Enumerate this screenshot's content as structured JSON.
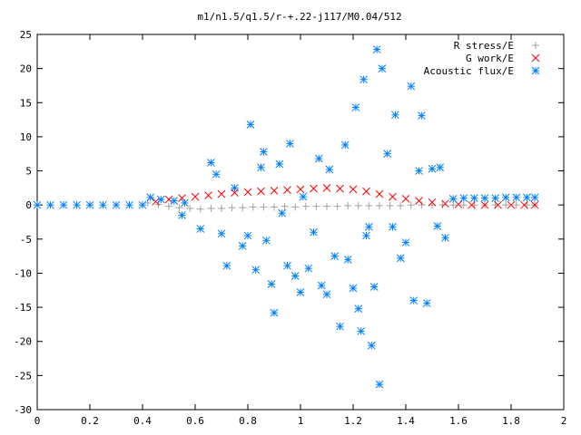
{
  "chart_data": {
    "type": "scatter",
    "title": "m1/n1.5/q1.5/r-+.22-j117/M0.04/512",
    "xlabel": "",
    "ylabel": "",
    "xlim": [
      0,
      2
    ],
    "ylim": [
      -30,
      25
    ],
    "x_ticks": [
      "0",
      "0.2",
      "0.4",
      "0.6",
      "0.8",
      "1",
      "1.2",
      "1.4",
      "1.6",
      "1.8",
      "2"
    ],
    "y_ticks": [
      "-30",
      "-25",
      "-20",
      "-15",
      "-10",
      "-5",
      "0",
      "5",
      "10",
      "15",
      "20",
      "25"
    ],
    "grid": false,
    "legend_position": "top-right",
    "series": [
      {
        "name": "R stress/E",
        "marker": "plus",
        "color": "#a0a0a0",
        "points": [
          [
            0.42,
            0.3
          ],
          [
            0.46,
            0.1
          ],
          [
            0.5,
            -0.2
          ],
          [
            0.54,
            -0.4
          ],
          [
            0.58,
            -0.5
          ],
          [
            0.62,
            -0.6
          ],
          [
            0.66,
            -0.5
          ],
          [
            0.7,
            -0.5
          ],
          [
            0.74,
            -0.4
          ],
          [
            0.78,
            -0.4
          ],
          [
            0.82,
            -0.3
          ],
          [
            0.86,
            -0.3
          ],
          [
            0.9,
            -0.3
          ],
          [
            0.94,
            -0.2
          ],
          [
            0.98,
            -0.3
          ],
          [
            1.02,
            -0.2
          ],
          [
            1.06,
            -0.2
          ],
          [
            1.1,
            -0.2
          ],
          [
            1.14,
            -0.2
          ],
          [
            1.18,
            -0.1
          ],
          [
            1.22,
            -0.1
          ],
          [
            1.26,
            -0.1
          ],
          [
            1.3,
            -0.1
          ],
          [
            1.34,
            -0.1
          ],
          [
            1.38,
            -0.1
          ],
          [
            1.42,
            0.0
          ],
          [
            1.46,
            0.0
          ],
          [
            1.5,
            0.0
          ],
          [
            1.54,
            0.0
          ],
          [
            1.58,
            0.0
          ],
          [
            1.62,
            0.0
          ],
          [
            1.66,
            0.0
          ],
          [
            1.7,
            0.0
          ],
          [
            1.74,
            0.0
          ],
          [
            1.78,
            0.0
          ],
          [
            1.82,
            0.0
          ],
          [
            1.86,
            0.0
          ],
          [
            1.89,
            0.0
          ]
        ]
      },
      {
        "name": "G work/E",
        "marker": "cross",
        "color": "#ff0000",
        "points": [
          [
            0.45,
            0.5
          ],
          [
            0.5,
            0.8
          ],
          [
            0.55,
            1.0
          ],
          [
            0.6,
            1.2
          ],
          [
            0.65,
            1.4
          ],
          [
            0.7,
            1.6
          ],
          [
            0.75,
            1.8
          ],
          [
            0.8,
            1.9
          ],
          [
            0.85,
            2.0
          ],
          [
            0.9,
            2.1
          ],
          [
            0.95,
            2.2
          ],
          [
            1.0,
            2.3
          ],
          [
            1.05,
            2.4
          ],
          [
            1.1,
            2.5
          ],
          [
            1.15,
            2.4
          ],
          [
            1.2,
            2.3
          ],
          [
            1.25,
            2.0
          ],
          [
            1.3,
            1.6
          ],
          [
            1.35,
            1.2
          ],
          [
            1.4,
            0.9
          ],
          [
            1.45,
            0.6
          ],
          [
            1.5,
            0.4
          ],
          [
            1.55,
            0.2
          ],
          [
            1.6,
            0.1
          ],
          [
            1.65,
            0.0
          ],
          [
            1.7,
            0.0
          ],
          [
            1.75,
            0.0
          ],
          [
            1.8,
            0.0
          ],
          [
            1.85,
            0.0
          ],
          [
            1.89,
            0.0
          ]
        ]
      },
      {
        "name": "Acoustic flux/E",
        "marker": "star",
        "color": "#0080ff",
        "points": [
          [
            0.0,
            0.0
          ],
          [
            0.05,
            0.0
          ],
          [
            0.1,
            0.0
          ],
          [
            0.15,
            0.0
          ],
          [
            0.2,
            0.0
          ],
          [
            0.25,
            0.0
          ],
          [
            0.3,
            0.0
          ],
          [
            0.35,
            0.0
          ],
          [
            0.4,
            0.0
          ],
          [
            0.43,
            1.1
          ],
          [
            0.47,
            0.8
          ],
          [
            0.52,
            0.6
          ],
          [
            0.56,
            0.3
          ],
          [
            1.58,
            0.9
          ],
          [
            1.62,
            1.0
          ],
          [
            1.66,
            1.0
          ],
          [
            1.7,
            1.0
          ],
          [
            1.74,
            1.0
          ],
          [
            1.78,
            1.1
          ],
          [
            1.82,
            1.1
          ],
          [
            1.86,
            1.1
          ],
          [
            1.89,
            1.1
          ],
          [
            0.55,
            -1.5
          ],
          [
            0.62,
            -3.5
          ],
          [
            0.66,
            6.2
          ],
          [
            0.68,
            4.5
          ],
          [
            0.7,
            -4.2
          ],
          [
            0.72,
            -8.9
          ],
          [
            0.75,
            2.5
          ],
          [
            0.78,
            -6.0
          ],
          [
            0.8,
            -4.5
          ],
          [
            0.81,
            11.8
          ],
          [
            0.83,
            -9.5
          ],
          [
            0.85,
            5.5
          ],
          [
            0.86,
            7.8
          ],
          [
            0.87,
            -5.2
          ],
          [
            0.89,
            -11.6
          ],
          [
            0.9,
            -15.8
          ],
          [
            0.92,
            6.0
          ],
          [
            0.93,
            -1.2
          ],
          [
            0.95,
            -8.9
          ],
          [
            0.96,
            9.0
          ],
          [
            0.98,
            -10.4
          ],
          [
            1.0,
            -12.8
          ],
          [
            1.01,
            1.2
          ],
          [
            1.03,
            -9.3
          ],
          [
            1.05,
            -4.0
          ],
          [
            1.07,
            6.8
          ],
          [
            1.08,
            -11.8
          ],
          [
            1.1,
            -13.1
          ],
          [
            1.11,
            5.2
          ],
          [
            1.13,
            -7.5
          ],
          [
            1.15,
            -17.8
          ],
          [
            1.17,
            8.8
          ],
          [
            1.18,
            -8.0
          ],
          [
            1.2,
            -12.2
          ],
          [
            1.21,
            14.3
          ],
          [
            1.22,
            -15.2
          ],
          [
            1.23,
            -18.5
          ],
          [
            1.24,
            18.4
          ],
          [
            1.25,
            -4.5
          ],
          [
            1.26,
            -3.2
          ],
          [
            1.27,
            -20.6
          ],
          [
            1.28,
            -12.0
          ],
          [
            1.29,
            22.8
          ],
          [
            1.3,
            -26.3
          ],
          [
            1.31,
            20.0
          ],
          [
            1.33,
            7.5
          ],
          [
            1.35,
            -3.2
          ],
          [
            1.36,
            13.2
          ],
          [
            1.38,
            -7.8
          ],
          [
            1.4,
            -5.5
          ],
          [
            1.42,
            17.4
          ],
          [
            1.43,
            -14.0
          ],
          [
            1.45,
            5.0
          ],
          [
            1.46,
            13.1
          ],
          [
            1.48,
            -14.4
          ],
          [
            1.5,
            5.3
          ],
          [
            1.52,
            -3.1
          ],
          [
            1.53,
            5.5
          ],
          [
            1.55,
            -4.8
          ]
        ]
      }
    ]
  }
}
